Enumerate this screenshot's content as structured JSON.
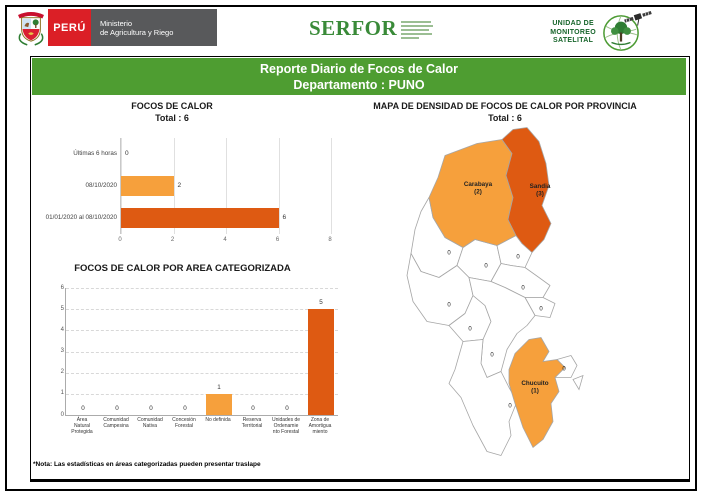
{
  "header": {
    "peru": "PERÚ",
    "ministry": [
      "Ministerio",
      "de Agricultura y Riego"
    ],
    "serfor": "SERFOR",
    "unit": [
      "UNIDAD DE",
      "MONITOREO",
      "SATELITAL"
    ]
  },
  "title_bar": {
    "line1": "Reporte Diario de Focos de Calor",
    "line2": "Departamento : PUNO"
  },
  "note": "*Nota: Las estadísticas en áreas categorizadas pueden presentar traslape",
  "colors": {
    "orange": "#F6A03C",
    "dark_orange": "#DE5A12",
    "green_bar": "#4E9D31",
    "map_stroke": "#A6A6A6"
  },
  "chart_data": [
    {
      "type": "bar",
      "orientation": "horizontal",
      "title": "FOCOS DE CALOR",
      "subtitle": "Total : 6",
      "categories": [
        "Últimas 6 horas",
        "08/10/2020",
        "01/01/2020 al 08/10/2020"
      ],
      "values": [
        0,
        2,
        6
      ],
      "bar_colors": [
        "#F6A03C",
        "#F6A03C",
        "#DE5A12"
      ],
      "xlim": [
        0,
        8
      ],
      "xticks": [
        0,
        2,
        4,
        6,
        8
      ],
      "grid": true,
      "legend": false
    },
    {
      "type": "bar",
      "orientation": "vertical",
      "title": "FOCOS DE CALOR POR AREA CATEGORIZADA",
      "categories": [
        [
          "Área",
          "Natural",
          "Protegida"
        ],
        [
          "Comunidad",
          "Campesina"
        ],
        [
          "Comunidad",
          "Nativa"
        ],
        [
          "Concesión",
          "Forestal"
        ],
        [
          "No definida"
        ],
        [
          "Reserva",
          "Territorial"
        ],
        [
          "Unidades de",
          "Ordenamie",
          "nto Forestal"
        ],
        [
          "Zona de",
          "Amortigua",
          "miento"
        ]
      ],
      "values": [
        0,
        0,
        0,
        0,
        1,
        0,
        0,
        5
      ],
      "bar_colors": [
        "#F6A03C",
        "#F6A03C",
        "#F6A03C",
        "#F6A03C",
        "#F6A03C",
        "#F6A03C",
        "#F6A03C",
        "#DE5A12"
      ],
      "ylim": [
        0,
        6
      ],
      "yticks": [
        0,
        1,
        2,
        3,
        4,
        5,
        6
      ],
      "grid": "dashed",
      "legend": false
    }
  ],
  "map": {
    "title": "MAPA DE DENSIDAD DE FOCOS DE CALOR POR PROVINCIA",
    "subtitle": "Total : 6",
    "provinces": [
      {
        "id": "carabaya",
        "label": [
          "Carabaya",
          "(2)"
        ],
        "value": 2,
        "fill": "orange"
      },
      {
        "id": "sandia",
        "label": [
          "Sandia",
          "(3)"
        ],
        "value": 3,
        "fill": "dark_orange"
      },
      {
        "id": "melgar",
        "label": [
          "0"
        ],
        "value": 0,
        "fill": "white"
      },
      {
        "id": "azangaro",
        "label": [
          "0"
        ],
        "value": 0,
        "fill": "white"
      },
      {
        "id": "putina",
        "label": [
          "0"
        ],
        "value": 0,
        "fill": "white"
      },
      {
        "id": "huancane",
        "label": [
          "0"
        ],
        "value": 0,
        "fill": "white"
      },
      {
        "id": "moho",
        "label": [
          "0"
        ],
        "value": 0,
        "fill": "white"
      },
      {
        "id": "lampa",
        "label": [
          "0"
        ],
        "value": 0,
        "fill": "white"
      },
      {
        "id": "san_roman",
        "label": [
          "0"
        ],
        "value": 0,
        "fill": "white"
      },
      {
        "id": "puno",
        "label": [
          "0"
        ],
        "value": 0,
        "fill": "white"
      },
      {
        "id": "el_collao",
        "label": [
          "0"
        ],
        "value": 0,
        "fill": "white"
      },
      {
        "id": "yunguyo",
        "label": [
          "0"
        ],
        "value": 0,
        "fill": "white"
      },
      {
        "id": "chucuito",
        "label": [
          "Chucuito",
          "(1)"
        ],
        "value": 1,
        "fill": "orange"
      }
    ]
  }
}
